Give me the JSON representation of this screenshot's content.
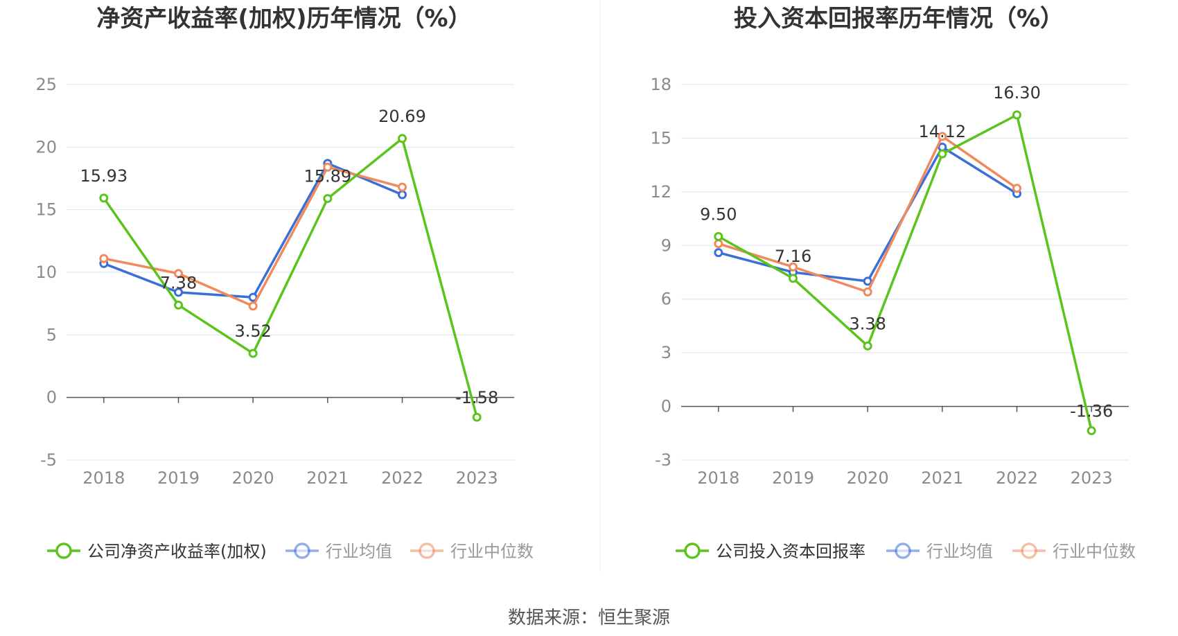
{
  "source_text": "数据来源：恒生聚源",
  "colors": {
    "company": "#5ac41d",
    "industry_avg": "#3b6fd8",
    "industry_median": "#f08a5d",
    "grid": "#dde3ef",
    "axis": "#555555"
  },
  "chart_data": [
    {
      "type": "line",
      "title": "净资产收益率(加权)历年情况（%）",
      "x": [
        "2018",
        "2019",
        "2020",
        "2021",
        "2022",
        "2023"
      ],
      "ylim": [
        -5,
        25
      ],
      "yticks": [
        -5,
        0,
        5,
        10,
        15,
        20,
        25
      ],
      "grid": true,
      "legend_position": "bottom",
      "series": [
        {
          "name": "公司净资产收益率(加权)",
          "role": "company",
          "values": [
            15.93,
            7.38,
            3.52,
            15.89,
            20.69,
            -1.58
          ],
          "labels": [
            "15.93",
            "7.38",
            "3.52",
            "15.89",
            "20.69",
            "-1.58"
          ]
        },
        {
          "name": "行业均值",
          "role": "industry_avg",
          "values": [
            10.7,
            8.4,
            8.0,
            18.7,
            16.2,
            null
          ]
        },
        {
          "name": "行业中位数",
          "role": "industry_median",
          "values": [
            11.1,
            9.9,
            7.3,
            18.4,
            16.8,
            null
          ]
        }
      ]
    },
    {
      "type": "line",
      "title": "投入资本回报率历年情况（%）",
      "x": [
        "2018",
        "2019",
        "2020",
        "2021",
        "2022",
        "2023"
      ],
      "ylim": [
        -3,
        18
      ],
      "yticks": [
        -3,
        0,
        3,
        6,
        9,
        12,
        15,
        18
      ],
      "grid": true,
      "legend_position": "bottom",
      "series": [
        {
          "name": "公司投入资本回报率",
          "role": "company",
          "values": [
            9.5,
            7.16,
            3.38,
            14.12,
            16.3,
            -1.36
          ],
          "labels": [
            "9.50",
            "7.16",
            "3.38",
            "14.12",
            "16.30",
            "-1.36"
          ]
        },
        {
          "name": "行业均值",
          "role": "industry_avg",
          "values": [
            8.6,
            7.5,
            7.0,
            14.5,
            11.9,
            null
          ]
        },
        {
          "name": "行业中位数",
          "role": "industry_median",
          "values": [
            9.1,
            7.8,
            6.4,
            15.1,
            12.2,
            null
          ]
        }
      ]
    }
  ]
}
